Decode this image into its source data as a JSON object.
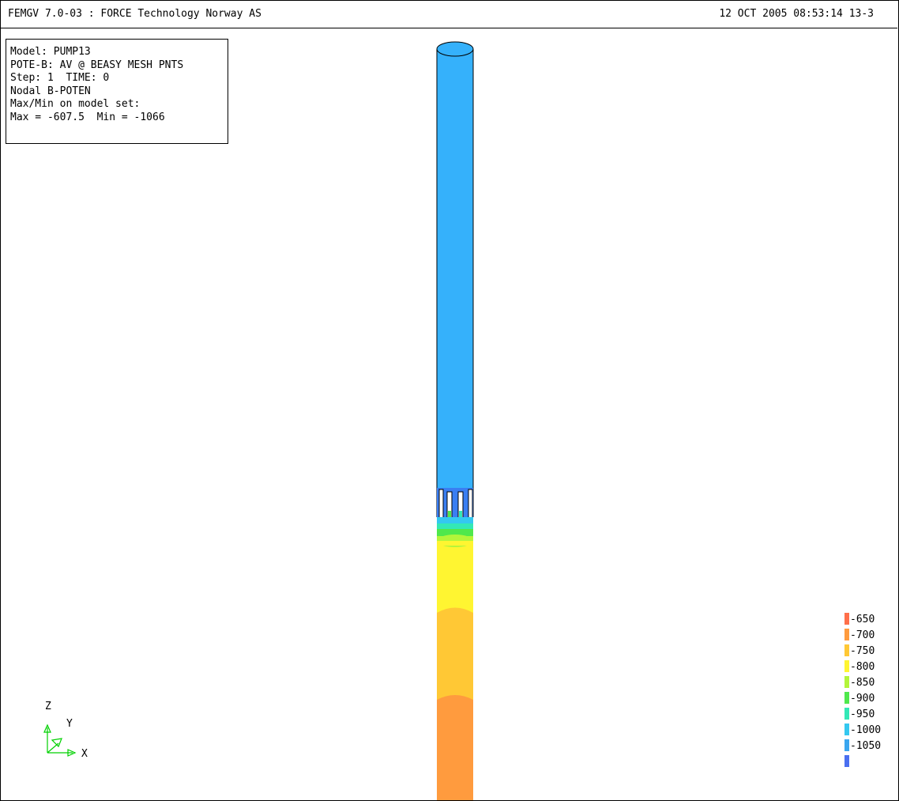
{
  "header": {
    "title": "FEMGV 7.0-03 : FORCE Technology Norway AS",
    "timestamp": "12 OCT 2005 08:53:14 13-3"
  },
  "info": {
    "lines": [
      "Model: PUMP13",
      "POTE-B: AV @ BEASY MESH PNTS",
      "Step: 1  TIME: 0",
      "Nodal B-POTEN",
      "Max/Min on model set:",
      "Max = -607.5  Min = -1066"
    ]
  },
  "legend": {
    "items": [
      {
        "label": "-650",
        "color": "#ff6f4a"
      },
      {
        "label": "-700",
        "color": "#ff9b3e"
      },
      {
        "label": "-750",
        "color": "#ffc835"
      },
      {
        "label": "-800",
        "color": "#fff531"
      },
      {
        "label": "-850",
        "color": "#b3f53a"
      },
      {
        "label": "-900",
        "color": "#4fe84c"
      },
      {
        "label": "-950",
        "color": "#33e8b6"
      },
      {
        "label": "-1000",
        "color": "#34c8f0"
      },
      {
        "label": "-1050",
        "color": "#3aa6ef"
      },
      {
        "label": "",
        "color": "#4a6ff0"
      }
    ]
  },
  "model_colors": {
    "pipe_upper": "#35b1fb",
    "band_green": "#4fe84c",
    "band_teal": "#33e8b6",
    "yellow": "#fff531",
    "gold": "#ffc835",
    "orange": "#ff9b3e"
  },
  "triad": {
    "z": "Z",
    "y": "Y",
    "x": "X",
    "color": "#00d000"
  }
}
